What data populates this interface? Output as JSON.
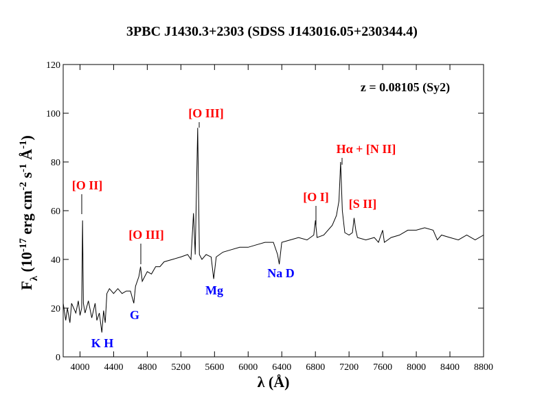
{
  "chart_data": {
    "type": "line",
    "title": "3PBC J1430.3+2303  (SDSS J143016.05+230344.4)",
    "xlabel": "λ (Å)",
    "ylabel_parts": [
      {
        "text": "F"
      },
      {
        "text": "λ",
        "sub": true
      },
      {
        "text": " (10"
      },
      {
        "text": "-17",
        "sup": true
      },
      {
        "text": " erg cm"
      },
      {
        "text": "-2",
        "sup": true
      },
      {
        "text": " s"
      },
      {
        "text": "-1",
        "sup": true
      },
      {
        "text": " Å"
      },
      {
        "text": "-1",
        "sup": true
      },
      {
        "text": ")"
      }
    ],
    "color": "#000000",
    "x": [
      3800,
      3830,
      3850,
      3880,
      3900,
      3950,
      3980,
      4000,
      4020,
      4030,
      4040,
      4060,
      4100,
      4140,
      4180,
      4200,
      4230,
      4260,
      4280,
      4300,
      4320,
      4350,
      4400,
      4450,
      4500,
      4550,
      4600,
      4640,
      4660,
      4700,
      4720,
      4740,
      4800,
      4850,
      4900,
      4950,
      5000,
      5100,
      5200,
      5280,
      5320,
      5350,
      5370,
      5400,
      5420,
      5450,
      5500,
      5560,
      5590,
      5620,
      5700,
      5800,
      5900,
      6000,
      6100,
      6200,
      6300,
      6350,
      6370,
      6400,
      6500,
      6600,
      6700,
      6780,
      6800,
      6820,
      6900,
      7000,
      7050,
      7080,
      7100,
      7120,
      7150,
      7200,
      7240,
      7260,
      7280,
      7300,
      7400,
      7500,
      7550,
      7600,
      7620,
      7700,
      7800,
      7900,
      8000,
      8100,
      8200,
      8250,
      8300,
      8400,
      8500,
      8600,
      8700,
      8800
    ],
    "values": [
      22,
      15,
      20,
      14,
      22,
      18,
      23,
      17,
      20,
      56,
      22,
      18,
      23,
      16,
      22,
      15,
      18,
      10,
      19,
      14,
      26,
      28,
      26,
      28,
      26,
      27,
      27,
      22,
      29,
      33,
      37,
      31,
      35,
      34,
      37,
      37,
      39,
      40,
      41,
      42,
      40,
      59,
      42,
      94,
      42,
      40,
      42,
      41,
      32,
      41,
      43,
      44,
      45,
      45,
      46,
      47,
      47,
      42,
      38,
      47,
      48,
      49,
      48,
      50,
      56,
      49,
      50,
      54,
      58,
      64,
      80,
      60,
      51,
      50,
      51,
      57,
      52,
      49,
      48,
      49,
      47,
      52,
      47,
      49,
      50,
      52,
      52,
      53,
      52,
      48,
      50,
      49,
      48,
      50,
      48,
      50
    ],
    "xlim": [
      3800,
      8800
    ],
    "ylim": [
      0,
      120
    ],
    "xticks": [
      4000,
      4400,
      4800,
      5200,
      5600,
      6000,
      6400,
      6800,
      7200,
      7600,
      8000,
      8400,
      8800
    ],
    "yticks": [
      0,
      20,
      40,
      60,
      80,
      100,
      120
    ],
    "annotations": [
      {
        "text": "z = 0.08105 (Sy2)",
        "color": "black"
      },
      {
        "text": "[O II]",
        "color": "red"
      },
      {
        "text": "[O III]",
        "color": "red"
      },
      {
        "text": "[O III]",
        "color": "red"
      },
      {
        "text": "[O I]",
        "color": "red"
      },
      {
        "text": "Hα + [N II]",
        "color": "red"
      },
      {
        "text": "[S II]",
        "color": "red"
      },
      {
        "text": "K H",
        "color": "blue"
      },
      {
        "text": "G",
        "color": "blue"
      },
      {
        "text": "Mg",
        "color": "blue"
      },
      {
        "text": "Na D",
        "color": "blue"
      }
    ]
  }
}
